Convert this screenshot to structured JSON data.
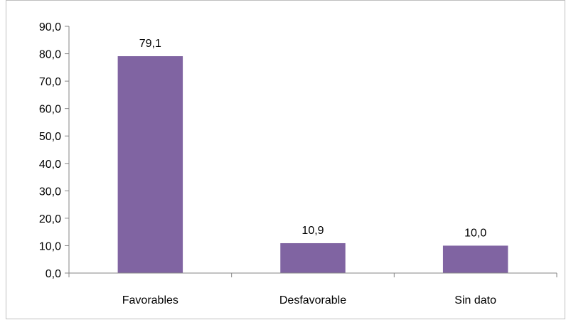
{
  "chart_data": {
    "type": "bar",
    "categories": [
      "Favorables",
      "Desfavorable",
      "Sin dato"
    ],
    "values": [
      79.1,
      10.9,
      10.0
    ],
    "value_labels": [
      "79,1",
      "10,9",
      "10,0"
    ],
    "yticks": [
      "0,0",
      "10,0",
      "20,0",
      "30,0",
      "40,0",
      "50,0",
      "60,0",
      "70,0",
      "80,0",
      "90,0"
    ],
    "ylim": [
      0,
      90
    ],
    "ytick_step": 10,
    "title": "",
    "xlabel": "",
    "ylabel": "",
    "grid": false,
    "legend": "none",
    "bar_color": "#8064a2",
    "axis_color": "#868686",
    "frame_color": "#bfbfbf"
  }
}
